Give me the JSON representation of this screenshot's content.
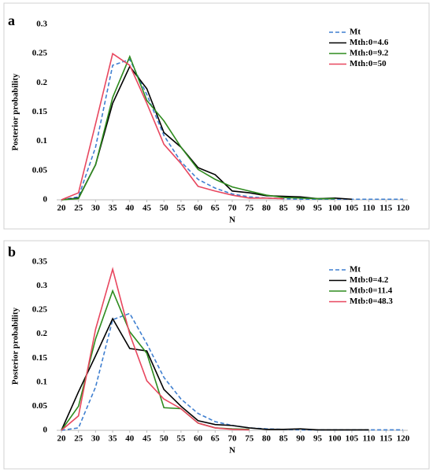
{
  "chart_data": [
    {
      "type": "line",
      "label": "a",
      "ylabel": "Posterior probability",
      "xlabel": "N",
      "x": [
        20,
        25,
        30,
        35,
        40,
        45,
        50,
        55,
        60,
        65,
        70,
        75,
        80,
        85,
        90,
        95,
        100,
        105,
        110,
        115,
        120
      ],
      "xlim": [
        20,
        120
      ],
      "xticks": [
        20,
        25,
        30,
        35,
        40,
        45,
        50,
        55,
        60,
        65,
        70,
        75,
        80,
        85,
        90,
        95,
        100,
        105,
        110,
        115,
        120
      ],
      "ylim": [
        0,
        0.3
      ],
      "yticks": [
        0,
        0.05,
        0.1,
        0.15,
        0.2,
        0.25,
        0.3
      ],
      "series": [
        {
          "name": "Mt",
          "color": "#3f7fd0",
          "dashed": true,
          "values": [
            0,
            0.005,
            0.09,
            0.23,
            0.24,
            0.18,
            0.11,
            0.065,
            0.035,
            0.02,
            0.01,
            0.005,
            0.003,
            0.002,
            0.001,
            0.001,
            0.001,
            0.001,
            0.001,
            0.001,
            0.001
          ]
        },
        {
          "name": "Mth:0=4.6",
          "color": "#000000",
          "values": [
            0,
            0.003,
            0.06,
            0.165,
            0.228,
            0.19,
            0.115,
            0.09,
            0.055,
            0.043,
            0.015,
            0.012,
            0.007,
            0.006,
            0.005,
            0.002,
            0.003,
            0.001,
            null,
            null,
            null
          ]
        },
        {
          "name": "Mth:0=9.2",
          "color": "#2e8b1e",
          "values": [
            0,
            0.002,
            0.06,
            0.175,
            0.245,
            0.17,
            0.135,
            0.09,
            0.052,
            0.035,
            0.022,
            0.015,
            0.008,
            0.004,
            0.003,
            0.002,
            0.002,
            null,
            null,
            null,
            null
          ]
        },
        {
          "name": "Mth:0=50",
          "color": "#e8475f",
          "values": [
            0,
            0.012,
            0.13,
            0.25,
            0.23,
            0.165,
            0.095,
            0.062,
            0.023,
            0.015,
            0.008,
            0.003,
            0.003,
            0.002,
            null,
            null,
            null,
            null,
            null,
            null,
            null
          ]
        }
      ]
    },
    {
      "type": "line",
      "label": "b",
      "ylabel": "Posterior probability",
      "xlabel": "N",
      "x": [
        20,
        25,
        30,
        35,
        40,
        45,
        50,
        55,
        60,
        65,
        70,
        75,
        80,
        85,
        90,
        95,
        100,
        105,
        110,
        115,
        120
      ],
      "xlim": [
        20,
        120
      ],
      "xticks": [
        20,
        25,
        30,
        35,
        40,
        45,
        50,
        55,
        60,
        65,
        70,
        75,
        80,
        85,
        90,
        95,
        100,
        105,
        110,
        115,
        120
      ],
      "ylim": [
        0,
        0.35
      ],
      "yticks": [
        0,
        0.05,
        0.1,
        0.15,
        0.2,
        0.25,
        0.3,
        0.35
      ],
      "series": [
        {
          "name": "Mt",
          "color": "#3f7fd0",
          "dashed": true,
          "values": [
            0,
            0.005,
            0.09,
            0.23,
            0.243,
            0.18,
            0.11,
            0.065,
            0.035,
            0.018,
            0.01,
            0.005,
            0.003,
            0.002,
            0.001,
            0.001,
            0.001,
            0.001,
            0.001,
            0.001,
            0.001
          ]
        },
        {
          "name": "Mtb:0=4.2",
          "color": "#000000",
          "values": [
            0,
            0.08,
            0.155,
            0.232,
            0.17,
            0.165,
            0.085,
            0.05,
            0.02,
            0.012,
            0.01,
            0.005,
            0.002,
            0.002,
            0.003,
            0.001,
            0.001,
            0.001,
            0.001,
            null,
            null
          ]
        },
        {
          "name": "Mtb:0=11.4",
          "color": "#2e8b1e",
          "values": [
            0,
            0.05,
            0.19,
            0.29,
            0.205,
            0.16,
            0.047,
            0.045,
            0.015,
            0.005,
            0.003,
            0.002,
            null,
            null,
            null,
            null,
            null,
            null,
            null,
            null,
            null
          ]
        },
        {
          "name": "Mtb:0=48.3",
          "color": "#e8475f",
          "values": [
            0,
            0.03,
            0.21,
            0.335,
            0.2,
            0.103,
            0.065,
            0.045,
            0.015,
            0.005,
            0.002,
            0.001,
            null,
            null,
            null,
            null,
            null,
            null,
            null,
            null,
            null
          ]
        }
      ]
    }
  ]
}
